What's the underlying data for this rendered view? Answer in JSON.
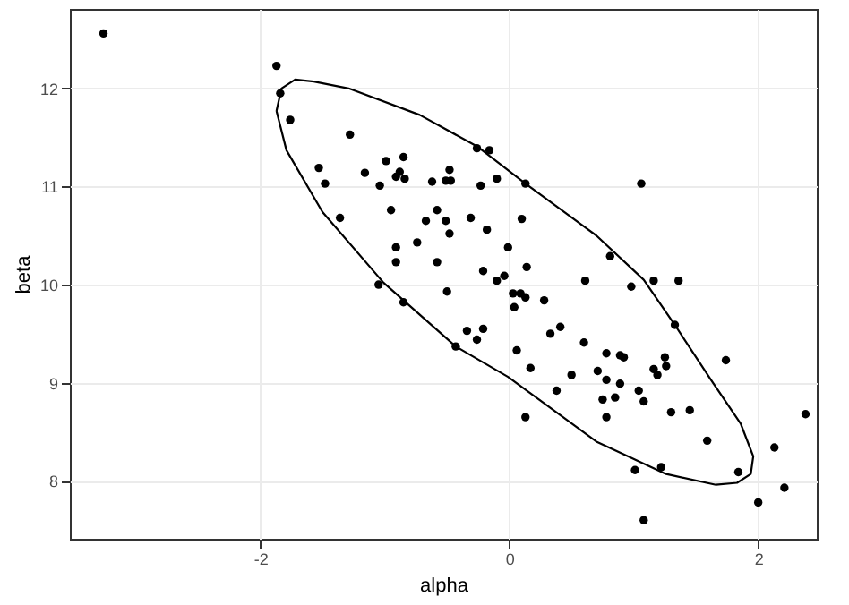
{
  "chart_data": {
    "type": "scatter",
    "xlabel": "alpha",
    "ylabel": "beta",
    "xlim": [
      -3.53,
      2.47
    ],
    "ylim": [
      7.41,
      12.81
    ],
    "xticks": [
      -2,
      0,
      2
    ],
    "yticks": [
      8,
      9,
      10,
      11,
      12
    ],
    "grid": true,
    "marker": "circle",
    "series": [
      {
        "color": "#000000",
        "x": [
          -3.26,
          -1.87,
          -1.84,
          -1.76,
          -1.28,
          -1.53,
          -1.48,
          -1.16,
          -0.99,
          -0.85,
          -0.88,
          -0.91,
          -0.84,
          -1.04,
          -0.62,
          -0.48,
          -0.51,
          -0.47,
          -0.95,
          -1.36,
          -0.58,
          -0.67,
          -0.51,
          -0.48,
          -0.74,
          -0.91,
          -0.91,
          -0.58,
          -0.26,
          -0.16,
          -0.1,
          -0.23,
          0.13,
          1.06,
          -0.31,
          -0.18,
          0.1,
          -0.01,
          -0.21,
          -0.04,
          0.14,
          0.81,
          0.61,
          1.16,
          1.36,
          -0.1,
          -1.05,
          -0.85,
          -0.5,
          0.98,
          0.03,
          0.09,
          0.13,
          0.04,
          0.28,
          -0.34,
          -0.26,
          -0.21,
          -0.43,
          0.06,
          0.33,
          0.41,
          0.6,
          0.78,
          0.89,
          0.92,
          1.33,
          1.74,
          1.25,
          1.26,
          1.16,
          1.19,
          0.17,
          0.5,
          0.71,
          0.78,
          0.89,
          0.38,
          1.04,
          1.08,
          0.75,
          0.85,
          1.3,
          1.45,
          0.78,
          0.13,
          2.38,
          1.59,
          2.13,
          1.01,
          1.22,
          1.84,
          2.21,
          2.0,
          1.08
        ],
        "values": [
          12.56,
          12.23,
          11.95,
          11.68,
          11.53,
          11.19,
          11.03,
          11.14,
          11.26,
          11.3,
          11.15,
          11.1,
          11.08,
          11.01,
          11.05,
          11.17,
          11.06,
          11.06,
          10.76,
          10.68,
          10.76,
          10.65,
          10.65,
          10.52,
          10.43,
          10.38,
          10.23,
          10.23,
          11.39,
          11.37,
          11.08,
          11.01,
          11.03,
          11.03,
          10.68,
          10.56,
          10.67,
          10.38,
          10.14,
          10.09,
          10.18,
          10.29,
          10.04,
          10.04,
          10.04,
          10.04,
          10.0,
          9.82,
          9.93,
          9.98,
          9.91,
          9.91,
          9.87,
          9.77,
          9.84,
          9.53,
          9.44,
          9.55,
          9.37,
          9.33,
          9.5,
          9.57,
          9.41,
          9.3,
          9.28,
          9.26,
          9.59,
          9.23,
          9.26,
          9.17,
          9.14,
          9.08,
          9.15,
          9.08,
          9.12,
          9.03,
          8.99,
          8.92,
          8.92,
          8.81,
          8.83,
          8.85,
          8.7,
          8.72,
          8.65,
          8.65,
          8.68,
          8.41,
          8.34,
          8.11,
          8.14,
          8.09,
          7.93,
          7.78,
          7.6
        ]
      },
      {
        "type": "line",
        "color": "#000000",
        "marker": "none",
        "x": [
          -1.87,
          -1.83,
          -1.72,
          -1.57,
          -1.29,
          -0.72,
          -0.26,
          0.13,
          0.7,
          1.08,
          1.33,
          1.62,
          1.86,
          1.96
        ],
        "values": [
          11.77,
          12.0,
          12.09,
          12.07,
          12.0,
          11.73,
          11.41,
          11.03,
          10.5,
          10.05,
          9.59,
          9.03,
          8.58,
          8.25
        ]
      },
      {
        "type": "line",
        "color": "#000000",
        "marker": "none",
        "x": [
          -1.87,
          -1.79,
          -1.5,
          -1.01,
          -0.43,
          -0.01,
          0.7,
          1.26,
          1.66,
          1.83,
          1.94,
          1.96
        ],
        "values": [
          11.77,
          11.37,
          10.74,
          10.02,
          9.37,
          9.06,
          8.4,
          8.07,
          7.96,
          7.98,
          8.07,
          8.25
        ]
      }
    ]
  }
}
